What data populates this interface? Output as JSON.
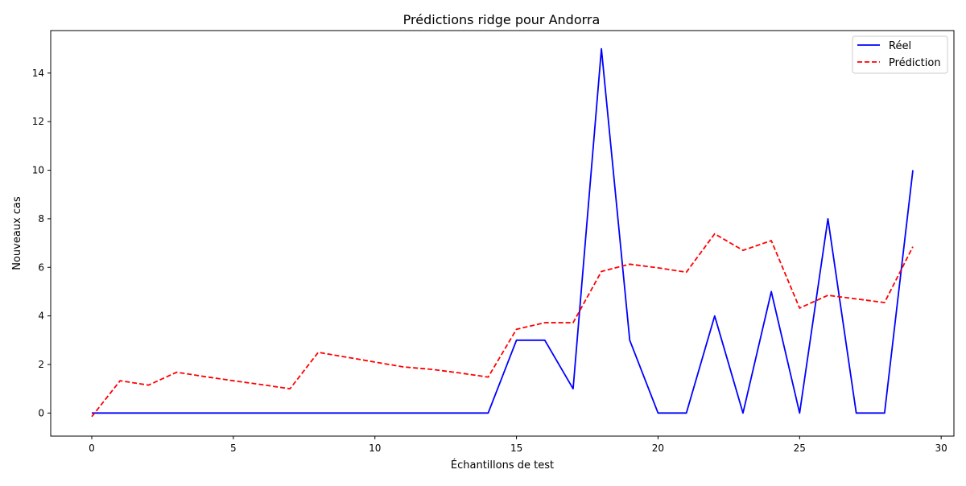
{
  "chart_data": {
    "type": "line",
    "title": "Prédictions ridge pour Andorra",
    "xlabel": "Échantillons de test",
    "ylabel": "Nouveaux cas",
    "xlim": [
      -1.45,
      30.45
    ],
    "ylim": [
      -0.95,
      15.75
    ],
    "xticks": [
      0,
      5,
      10,
      15,
      20,
      25,
      30
    ],
    "yticks": [
      0,
      2,
      4,
      6,
      8,
      10,
      12,
      14
    ],
    "grid": false,
    "legend_position": "top-right",
    "x": [
      0,
      1,
      2,
      3,
      4,
      5,
      6,
      7,
      8,
      9,
      10,
      11,
      12,
      13,
      14,
      15,
      16,
      17,
      18,
      19,
      20,
      21,
      22,
      23,
      24,
      25,
      26,
      27,
      28,
      29
    ],
    "series": [
      {
        "name": "Réel",
        "color": "#0000ff",
        "dash": "solid",
        "values": [
          0,
          0,
          0,
          0,
          0,
          0,
          0,
          0,
          0,
          0,
          0,
          0,
          0,
          0,
          0,
          3,
          3,
          1,
          15,
          3,
          0,
          0,
          4,
          0,
          5,
          0,
          8,
          0,
          0,
          10
        ]
      },
      {
        "name": "Prédiction",
        "color": "#ff0000",
        "dash": "dashed",
        "values": [
          -0.15,
          1.33,
          1.15,
          1.68,
          1.5,
          1.33,
          1.17,
          1.0,
          2.5,
          2.3,
          2.1,
          1.9,
          1.8,
          1.65,
          1.48,
          3.45,
          3.72,
          3.72,
          5.83,
          6.13,
          5.98,
          5.8,
          7.38,
          6.7,
          7.1,
          4.32,
          4.85,
          4.7,
          4.55,
          6.85
        ]
      }
    ]
  }
}
